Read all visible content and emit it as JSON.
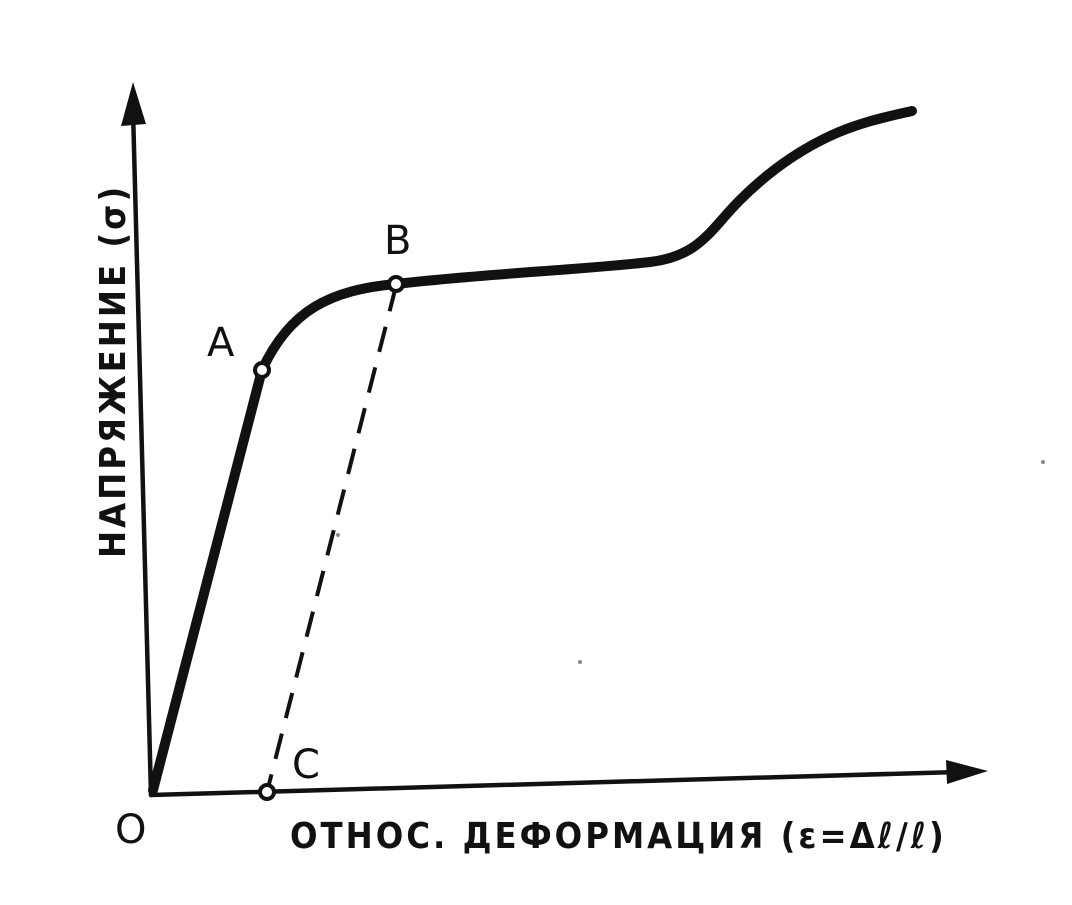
{
  "axes": {
    "y_label": "НАПРЯЖЕНИЕ (σ)",
    "x_label": "ОТНОС. ДЕФОРМАЦИЯ (ε=Δℓ/ℓ)",
    "origin_label": "O"
  },
  "points": {
    "a_label": "A",
    "b_label": "B",
    "c_label": "C"
  },
  "colors": {
    "ink": "#111111",
    "background": "#ffffff"
  }
}
